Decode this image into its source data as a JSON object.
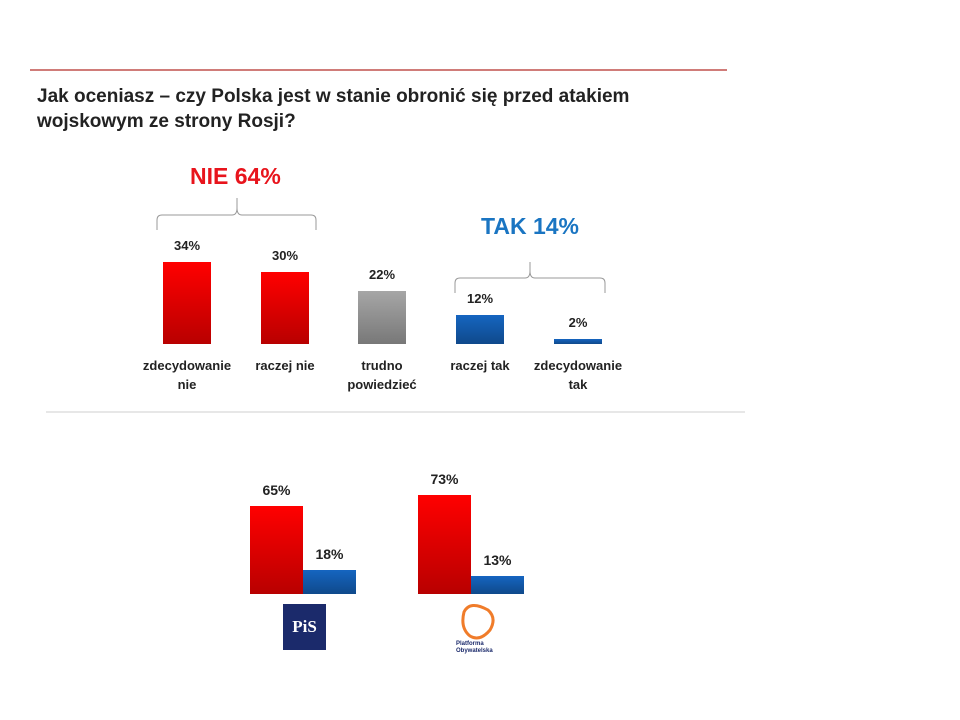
{
  "chart_data": [
    {
      "type": "bar",
      "title": "Jak oceniasz – czy Polska jest w stanie obronić się przed atakiem wojskowym ze strony Rosji?",
      "categories": [
        "zdecydowanie nie",
        "raczej nie",
        "trudno powiedzieć",
        "raczej tak",
        "zdecydowanie tak"
      ],
      "values": [
        34,
        30,
        22,
        12,
        2
      ],
      "value_labels": [
        "34%",
        "30%",
        "22%",
        "12%",
        "2%"
      ],
      "colors": [
        "#ff0000",
        "#ff0000",
        "#a6a6a6",
        "#1565c0",
        "#1565c0"
      ],
      "annotations": [
        {
          "text": "NIE 64%",
          "color": "#e8141c"
        },
        {
          "text": "TAK 14%",
          "color": "#1a75c2"
        }
      ]
    },
    {
      "type": "grouped_bar",
      "categories": [
        "PiS",
        "Platforma Obywatelska"
      ],
      "series": [
        {
          "color": "#ff0000",
          "values": [
            65,
            73
          ],
          "value_labels": [
            "65%",
            "73%"
          ]
        },
        {
          "color": "#1565c0",
          "values": [
            18,
            13
          ],
          "value_labels": [
            "18%",
            "13%"
          ]
        }
      ]
    }
  ]
}
